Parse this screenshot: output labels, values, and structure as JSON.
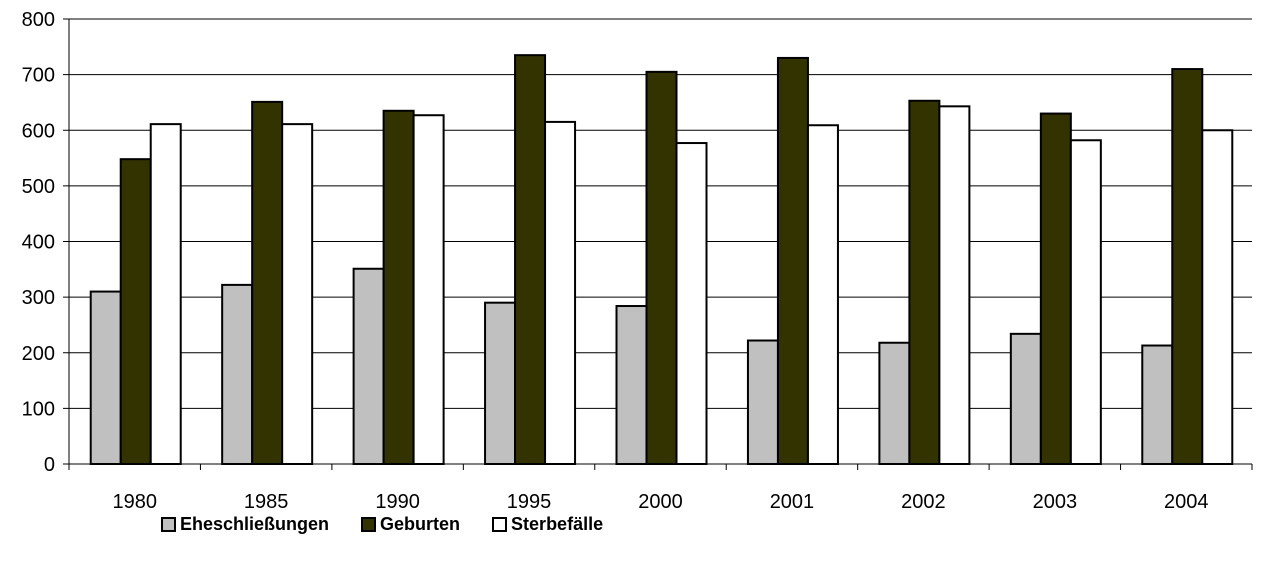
{
  "chart_data": {
    "type": "bar",
    "categories": [
      "1980",
      "1985",
      "1990",
      "1995",
      "2000",
      "2001",
      "2002",
      "2003",
      "2004"
    ],
    "series": [
      {
        "name": "Eheschließungen",
        "color": "#c0c0c0",
        "values": [
          310,
          322,
          351,
          290,
          284,
          222,
          218,
          234,
          213
        ]
      },
      {
        "name": "Geburten",
        "color": "#333300",
        "values": [
          548,
          651,
          635,
          735,
          705,
          730,
          653,
          630,
          710
        ]
      },
      {
        "name": "Sterbefälle",
        "color": "#ffffff",
        "values": [
          611,
          611,
          627,
          615,
          577,
          609,
          643,
          582,
          600
        ]
      }
    ],
    "y_ticks": [
      "0",
      "100",
      "200",
      "300",
      "400",
      "500",
      "600",
      "700",
      "800"
    ],
    "ylim": [
      0,
      800
    ],
    "grid": true,
    "legend_position": "bottom",
    "title": "",
    "xlabel": "",
    "ylabel": ""
  }
}
